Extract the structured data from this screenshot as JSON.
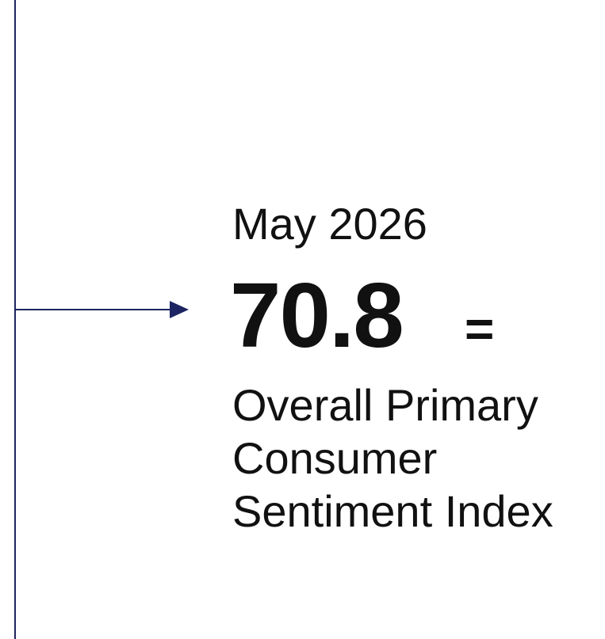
{
  "date": "May 2026",
  "value": 70.8,
  "indicator": "=",
  "label": "Overall Primary Consumer Sentiment Index"
}
